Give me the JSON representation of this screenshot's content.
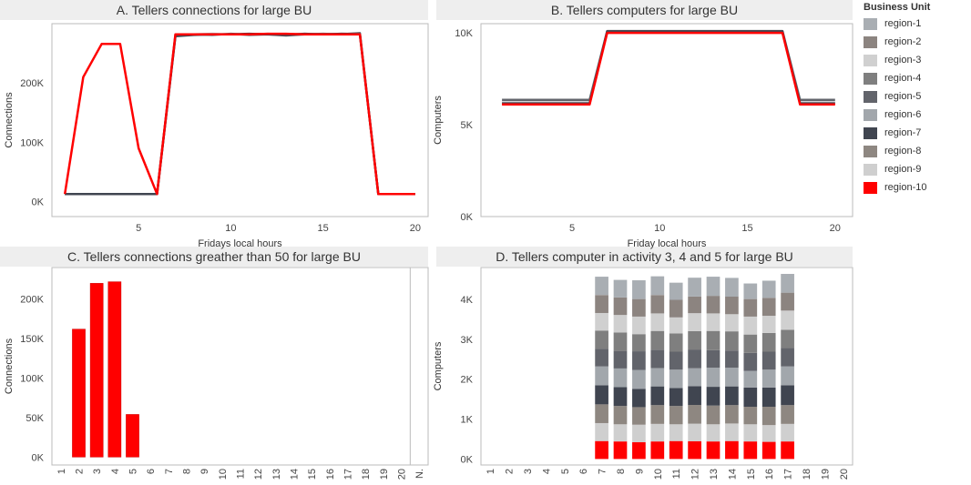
{
  "colors": {
    "region-1": "#a9aeb3",
    "region-2": "#8c8480",
    "region-3": "#d0d0d0",
    "region-4": "#7f7f7f",
    "region-5": "#62646b",
    "region-6": "#a2a7ac",
    "region-7": "#404550",
    "region-8": "#8e8781",
    "region-9": "#cfcfcf",
    "region-10": "#ff0000"
  },
  "legend": {
    "title": "Business Unit",
    "items": [
      "region-1",
      "region-2",
      "region-3",
      "region-4",
      "region-5",
      "region-6",
      "region-7",
      "region-8",
      "region-9",
      "region-10"
    ]
  },
  "chart_data": [
    {
      "type": "line",
      "title": "A. Tellers connections for large BU",
      "xlabel": "Fridays local hours",
      "ylabel": "Connections",
      "xlim": [
        0.3,
        20.7
      ],
      "ylim": [
        -25000,
        300000
      ],
      "xticks": [
        5,
        10,
        15,
        20
      ],
      "xtick_labels": [
        "5",
        "10",
        "15",
        "20"
      ],
      "yticks": [
        0,
        100000,
        200000
      ],
      "ytick_labels": [
        "0K",
        "100K",
        "200K"
      ],
      "x": [
        1,
        2,
        3,
        4,
        5,
        6,
        7,
        8,
        9,
        10,
        11,
        12,
        13,
        14,
        15,
        16,
        17,
        18,
        19,
        20
      ],
      "series": [
        {
          "name": "region-1",
          "values": [
            13000,
            13000,
            13000,
            13000,
            13000,
            13000,
            282000,
            282000,
            283000,
            282000,
            282000,
            283000,
            282000,
            283000,
            282000,
            283000,
            283000,
            13000,
            13000,
            13000
          ]
        },
        {
          "name": "region-5",
          "values": [
            13000,
            13000,
            13000,
            13000,
            13000,
            13000,
            280000,
            282000,
            281000,
            283000,
            281000,
            282000,
            280000,
            282000,
            283000,
            282000,
            284000,
            13000,
            13000,
            13000
          ]
        },
        {
          "name": "region-7",
          "values": [
            13000,
            13000,
            13000,
            13000,
            13000,
            13000,
            279000,
            281000,
            282000,
            282000,
            283000,
            282000,
            281000,
            283000,
            282000,
            283000,
            282000,
            13000,
            13000,
            13000
          ]
        },
        {
          "name": "region-10",
          "values": [
            13000,
            210000,
            266000,
            266000,
            90000,
            13000,
            282000,
            282000,
            282000,
            282000,
            282000,
            283000,
            283000,
            282000,
            282000,
            282000,
            282000,
            13000,
            13000,
            13000
          ]
        }
      ]
    },
    {
      "type": "line",
      "title": "B. Tellers computers for large BU",
      "xlabel": "Friday local hours",
      "ylabel": "Computers",
      "xlim": [
        -0.2,
        21.0
      ],
      "ylim": [
        0,
        10500
      ],
      "xticks": [
        5,
        10,
        15,
        20
      ],
      "xtick_labels": [
        "5",
        "10",
        "15",
        "20"
      ],
      "yticks": [
        0,
        5000,
        10000
      ],
      "ytick_labels": [
        "0K",
        "5K",
        "10K"
      ],
      "x": [
        1,
        2,
        3,
        4,
        5,
        6,
        7,
        8,
        9,
        10,
        11,
        12,
        13,
        14,
        15,
        16,
        17,
        18,
        19,
        20
      ],
      "series": [
        {
          "name": "region-1",
          "values": [
            6200,
            6200,
            6200,
            6200,
            6200,
            6200,
            10050,
            10050,
            10050,
            10050,
            10050,
            10050,
            10050,
            10050,
            10050,
            10050,
            10050,
            6200,
            6200,
            6200
          ]
        },
        {
          "name": "region-5",
          "values": [
            6350,
            6350,
            6350,
            6350,
            6350,
            6350,
            10100,
            10100,
            10100,
            10100,
            10100,
            10100,
            10100,
            10100,
            10100,
            10100,
            10100,
            6350,
            6350,
            6350
          ]
        },
        {
          "name": "region-7",
          "values": [
            6150,
            6150,
            6150,
            6150,
            6150,
            6150,
            10080,
            10080,
            10080,
            10080,
            10080,
            10080,
            10080,
            10080,
            10080,
            10080,
            10080,
            6150,
            6150,
            6150
          ]
        },
        {
          "name": "region-10",
          "values": [
            6100,
            6100,
            6100,
            6100,
            6100,
            6100,
            10000,
            10000,
            10000,
            10000,
            10000,
            10000,
            10000,
            10000,
            10000,
            10000,
            10000,
            6100,
            6100,
            6100
          ]
        }
      ]
    },
    {
      "type": "bar",
      "title": "C. Tellers connections greather than 50 for large BU",
      "ylabel": "Connections",
      "ylim": [
        -10000,
        240000
      ],
      "yticks": [
        0,
        50000,
        100000,
        150000,
        200000
      ],
      "ytick_labels": [
        "0K",
        "50K",
        "100K",
        "150K",
        "200K"
      ],
      "categories": [
        "1",
        "2",
        "3",
        "4",
        "5",
        "6",
        "7",
        "8",
        "9",
        "10",
        "11",
        "12",
        "13",
        "14",
        "15",
        "16",
        "17",
        "18",
        "19",
        "20",
        "N."
      ],
      "values": [
        0,
        162000,
        220000,
        222000,
        54000,
        0,
        0,
        0,
        0,
        0,
        0,
        0,
        0,
        0,
        0,
        0,
        0,
        0,
        0,
        0,
        0
      ]
    },
    {
      "type": "bar",
      "stacked": true,
      "title": "D. Tellers computer in activity 3, 4 and 5 for large BU",
      "ylabel": "Computers",
      "ylim": [
        -150,
        4800
      ],
      "yticks": [
        0,
        1000,
        2000,
        3000,
        4000
      ],
      "ytick_labels": [
        "0K",
        "1K",
        "2K",
        "3K",
        "4K"
      ],
      "categories": [
        "1",
        "2",
        "3",
        "4",
        "5",
        "6",
        "7",
        "8",
        "9",
        "10",
        "11",
        "12",
        "13",
        "14",
        "15",
        "16",
        "17",
        "18",
        "19",
        "20"
      ],
      "series": [
        {
          "name": "region-10",
          "values": [
            0,
            0,
            0,
            0,
            0,
            0,
            450,
            440,
            420,
            440,
            450,
            445,
            440,
            450,
            440,
            430,
            440,
            0,
            0,
            0
          ]
        },
        {
          "name": "region-9",
          "values": [
            0,
            0,
            0,
            0,
            0,
            0,
            450,
            430,
            440,
            440,
            420,
            440,
            430,
            440,
            430,
            420,
            440,
            0,
            0,
            0
          ]
        },
        {
          "name": "region-8",
          "values": [
            0,
            0,
            0,
            0,
            0,
            0,
            470,
            460,
            440,
            470,
            460,
            470,
            470,
            460,
            440,
            460,
            470,
            0,
            0,
            0
          ]
        },
        {
          "name": "region-7",
          "values": [
            0,
            0,
            0,
            0,
            0,
            0,
            480,
            470,
            460,
            470,
            450,
            470,
            470,
            470,
            480,
            480,
            500,
            0,
            0,
            0
          ]
        },
        {
          "name": "region-6",
          "values": [
            0,
            0,
            0,
            0,
            0,
            0,
            470,
            470,
            470,
            460,
            460,
            450,
            480,
            470,
            420,
            450,
            470,
            0,
            0,
            0
          ]
        },
        {
          "name": "region-5",
          "values": [
            0,
            0,
            0,
            0,
            0,
            0,
            440,
            440,
            470,
            460,
            450,
            470,
            440,
            430,
            450,
            450,
            460,
            0,
            0,
            0
          ]
        },
        {
          "name": "region-4",
          "values": [
            0,
            0,
            0,
            0,
            0,
            0,
            460,
            460,
            430,
            470,
            460,
            460,
            480,
            480,
            460,
            470,
            460,
            0,
            0,
            0
          ]
        },
        {
          "name": "region-3",
          "values": [
            0,
            0,
            0,
            0,
            0,
            0,
            440,
            440,
            440,
            440,
            400,
            450,
            440,
            430,
            450,
            430,
            480,
            0,
            0,
            0
          ]
        },
        {
          "name": "region-2",
          "values": [
            0,
            0,
            0,
            0,
            0,
            0,
            450,
            440,
            440,
            460,
            440,
            420,
            440,
            440,
            440,
            450,
            450,
            0,
            0,
            0
          ]
        },
        {
          "name": "region-1",
          "values": [
            0,
            0,
            0,
            0,
            0,
            0,
            460,
            440,
            470,
            470,
            430,
            470,
            480,
            470,
            390,
            430,
            470,
            0,
            0,
            0
          ]
        }
      ]
    }
  ]
}
